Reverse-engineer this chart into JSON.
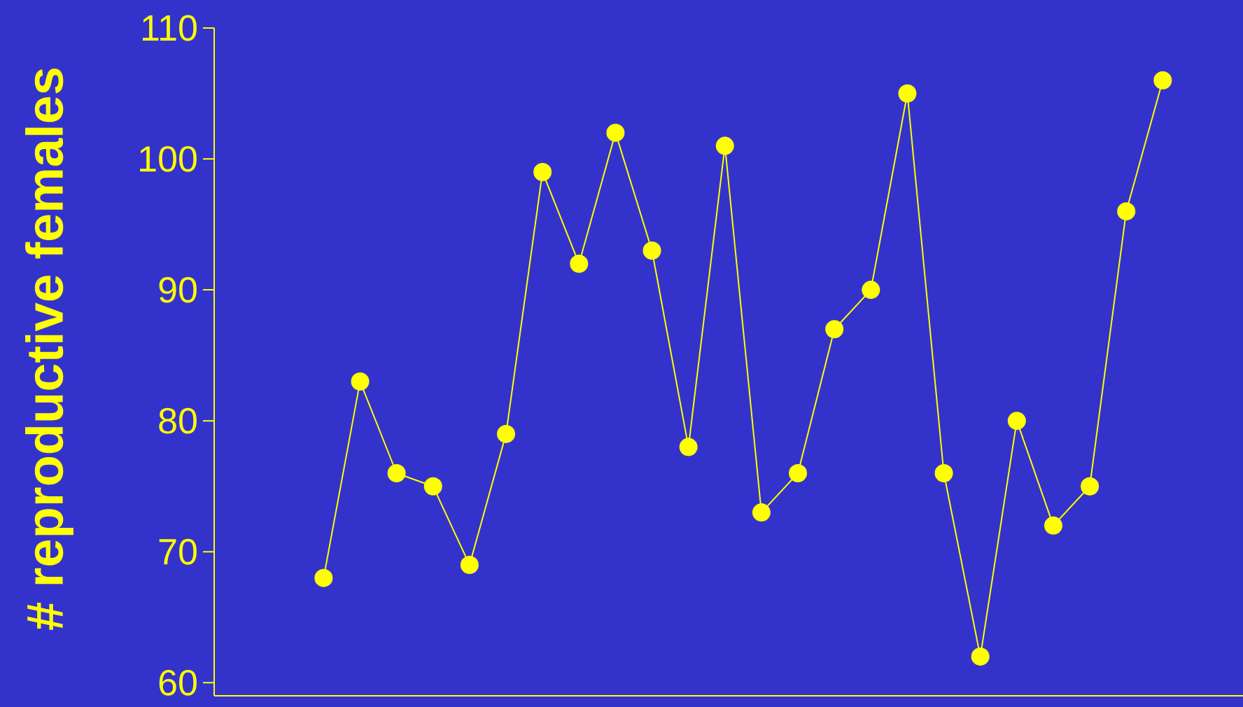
{
  "chart_data": {
    "type": "line",
    "ylabel": "# reproductive females",
    "categories": [
      null,
      null,
      null,
      null,
      null,
      null,
      null,
      null,
      null,
      null,
      null,
      null,
      null,
      null,
      null,
      null,
      null,
      null,
      null,
      null,
      null,
      null,
      null,
      null
    ],
    "series": [
      {
        "color": "#ffff00",
        "values": [
          68,
          83,
          76,
          75,
          69,
          79,
          99,
          92,
          102,
          93,
          78,
          101,
          73,
          76,
          87,
          90,
          105,
          76,
          62,
          80,
          72,
          75,
          96,
          106
        ]
      }
    ],
    "ylim": [
      59,
      110
    ],
    "yticks": [
      60,
      70,
      80,
      90,
      100,
      110
    ],
    "tick_labels": "y",
    "marker": "circle",
    "line_style": "solid",
    "grid": false
  }
}
